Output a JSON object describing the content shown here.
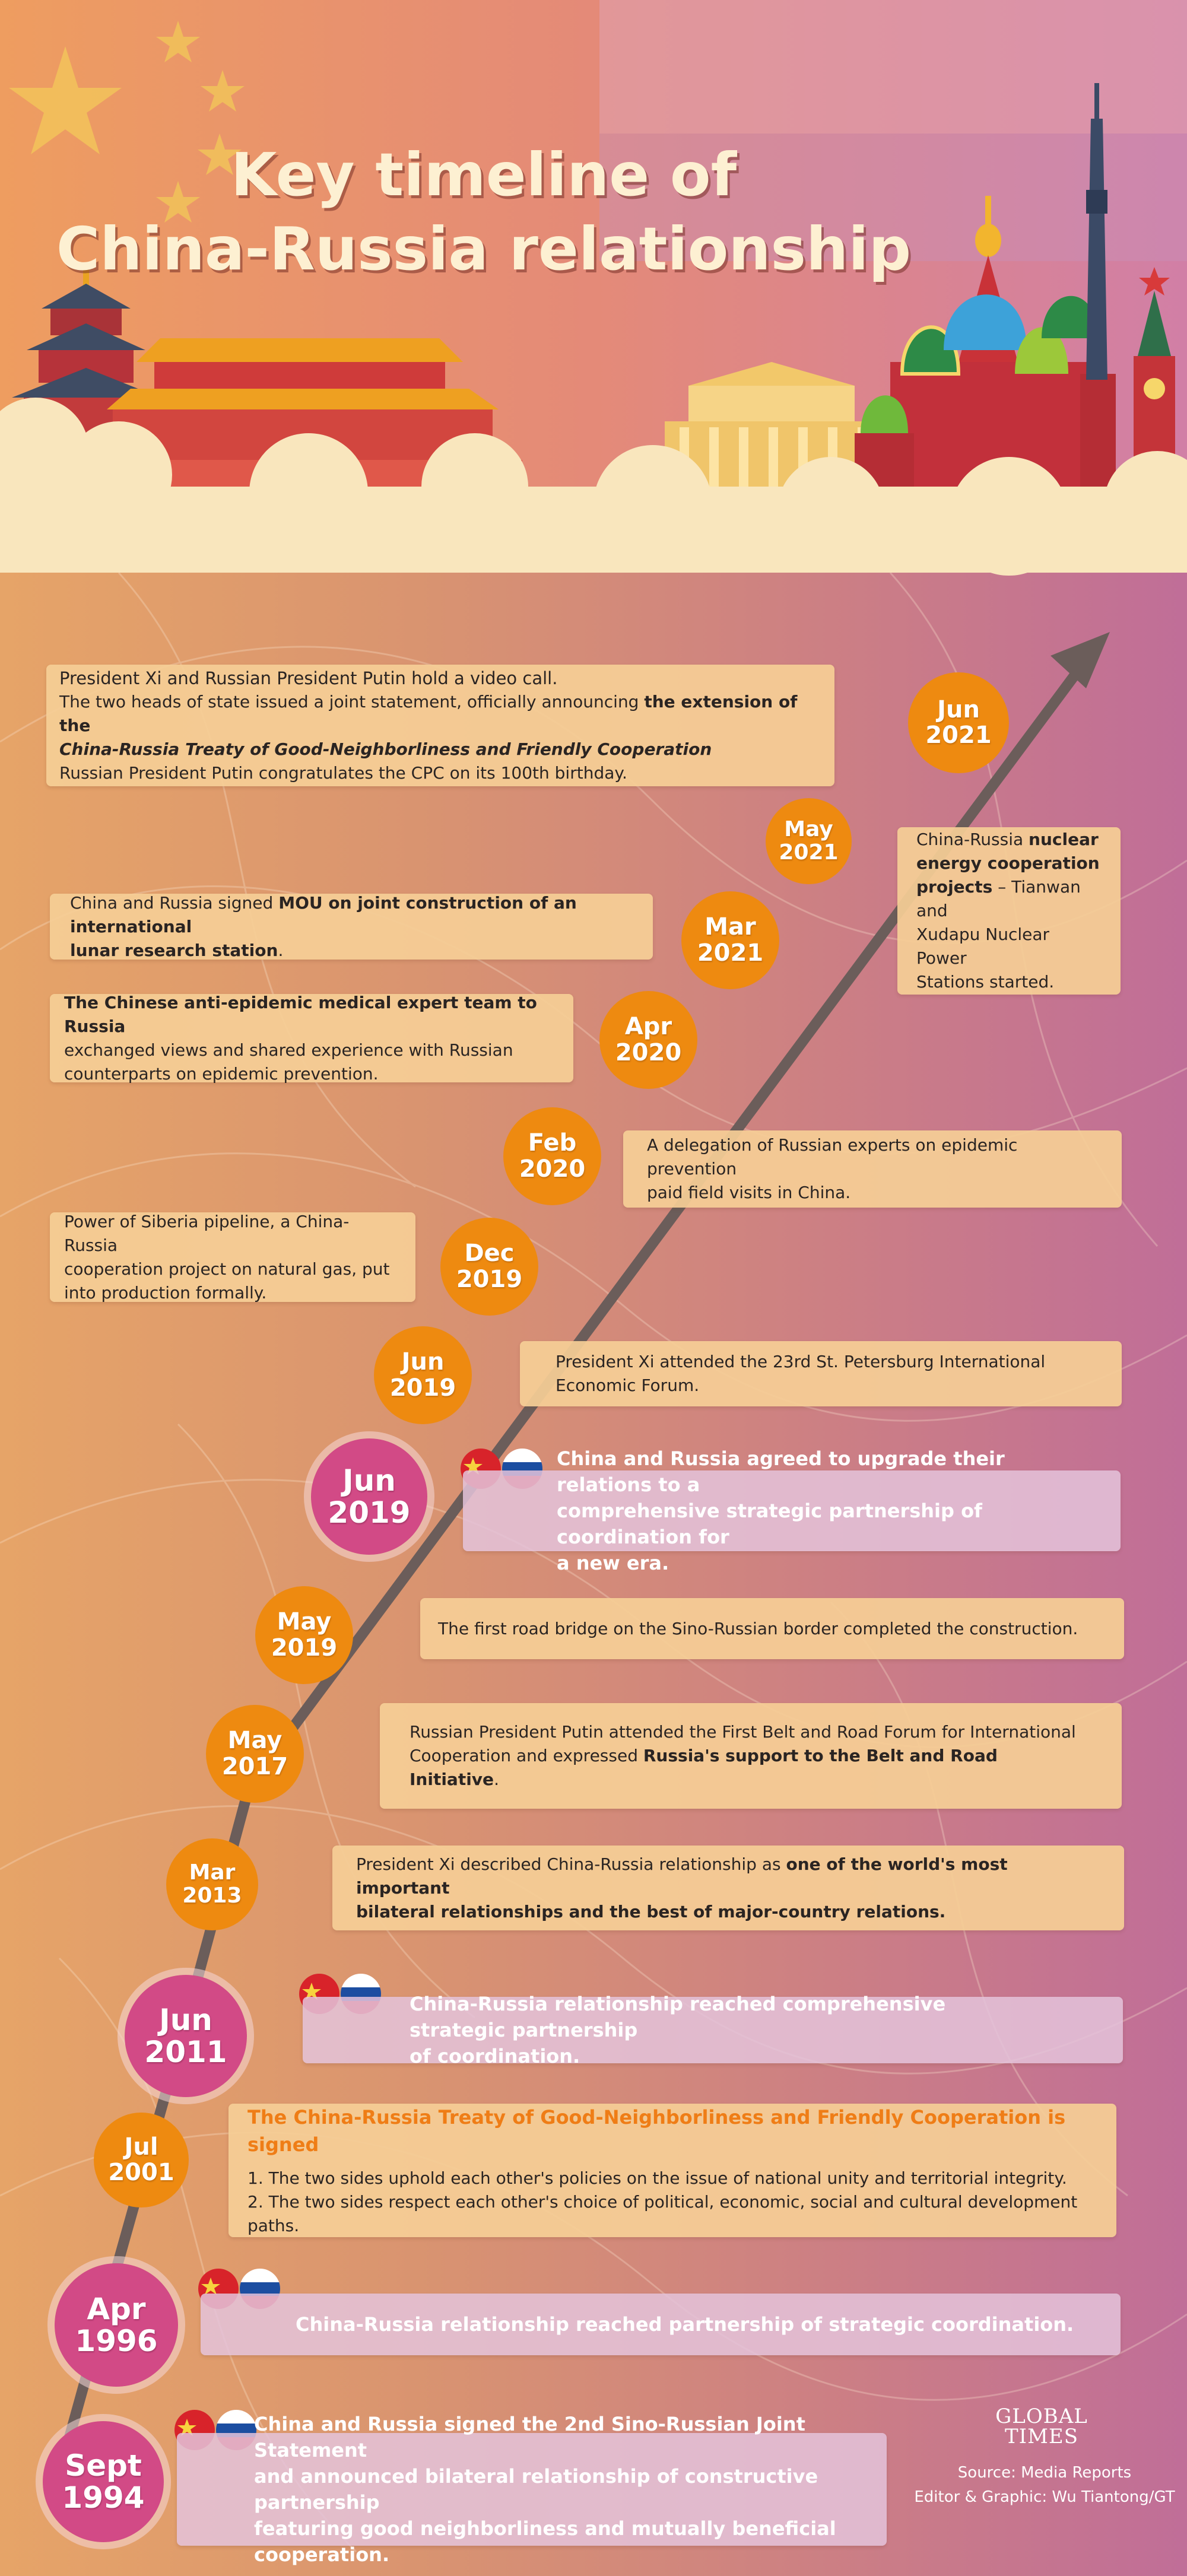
{
  "title": {
    "line1": "Key timeline of",
    "line2": "China-Russia relationship"
  },
  "colors": {
    "accent_orange": "#ee8a10",
    "accent_pink": "#d24a86",
    "box_fill": "#f5cd96",
    "heading_orange": "#ef7d16"
  },
  "events": [
    {
      "date": {
        "month": "Jun",
        "year": "2021"
      },
      "lines": [
        [
          {
            "t": "President Xi and Russian President Putin hold a video call."
          }
        ],
        [
          {
            "t": "The two heads of state issued a joint statement, officially announcing "
          },
          {
            "t": "the extension of the",
            "b": true
          }
        ],
        [
          {
            "t": "China-Russia Treaty of Good-Neighborliness and Friendly Cooperation",
            "b": true,
            "i": true
          }
        ],
        [
          {
            "t": "Russian President Putin congratulates the CPC on its 100th birthday."
          }
        ]
      ]
    },
    {
      "date": {
        "month": "May",
        "year": "2021"
      },
      "lines": [
        [
          {
            "t": "China-Russia "
          },
          {
            "t": "nuclear",
            "b": true
          }
        ],
        [
          {
            "t": "energy cooperation",
            "b": true
          }
        ],
        [
          {
            "t": "projects",
            "b": true
          },
          {
            "t": " – Tianwan and"
          }
        ],
        [
          {
            "t": "Xudapu Nuclear Power"
          }
        ],
        [
          {
            "t": "Stations started."
          }
        ]
      ]
    },
    {
      "date": {
        "month": "Mar",
        "year": "2021"
      },
      "lines": [
        [
          {
            "t": "China and Russia signed "
          },
          {
            "t": "MOU on joint construction of an international",
            "b": true
          }
        ],
        [
          {
            "t": "lunar research station",
            "b": true
          },
          {
            "t": "."
          }
        ]
      ]
    },
    {
      "date": {
        "month": "Apr",
        "year": "2020"
      },
      "lines": [
        [
          {
            "t": "The Chinese anti-epidemic medical expert team to Russia",
            "b": true
          }
        ],
        [
          {
            "t": "exchanged views and shared experience with Russian"
          }
        ],
        [
          {
            "t": "counterparts on epidemic prevention."
          }
        ]
      ]
    },
    {
      "date": {
        "month": "Feb",
        "year": "2020"
      },
      "lines": [
        [
          {
            "t": "A delegation of Russian experts on epidemic prevention"
          }
        ],
        [
          {
            "t": "paid field visits in China."
          }
        ]
      ]
    },
    {
      "date": {
        "month": "Dec",
        "year": "2019"
      },
      "lines": [
        [
          {
            "t": "Power of Siberia pipeline, a China-Russia"
          }
        ],
        [
          {
            "t": "cooperation project on natural gas, put"
          }
        ],
        [
          {
            "t": "into production formally."
          }
        ]
      ]
    },
    {
      "date": {
        "month": "Jun",
        "year": "2019"
      },
      "lines": [
        [
          {
            "t": "President Xi attended the 23rd St. Petersburg International"
          }
        ],
        [
          {
            "t": "Economic Forum."
          }
        ]
      ]
    },
    {
      "date": {
        "month": "Jun",
        "year": "2019"
      },
      "major": true,
      "lines": [
        [
          {
            "t": "China and Russia agreed to upgrade their relations to a"
          }
        ],
        [
          {
            "t": "comprehensive strategic partnership of coordination for"
          }
        ],
        [
          {
            "t": "a new era."
          }
        ]
      ]
    },
    {
      "date": {
        "month": "May",
        "year": "2019"
      },
      "lines": [
        [
          {
            "t": "The first road bridge on the Sino-Russian border completed the construction."
          }
        ]
      ]
    },
    {
      "date": {
        "month": "May",
        "year": "2017"
      },
      "lines": [
        [
          {
            "t": "Russian President Putin attended the First Belt and Road Forum for International"
          }
        ],
        [
          {
            "t": "Cooperation and expressed "
          },
          {
            "t": "Russia's support to the Belt and Road Initiative",
            "b": true
          },
          {
            "t": "."
          }
        ]
      ]
    },
    {
      "date": {
        "month": "Mar",
        "year": "2013"
      },
      "lines": [
        [
          {
            "t": "President Xi described China-Russia relationship as "
          },
          {
            "t": "one of the world's most important",
            "b": true
          }
        ],
        [
          {
            "t": "bilateral relationships and the best of major-country relations.",
            "b": true
          }
        ]
      ]
    },
    {
      "date": {
        "month": "Jun",
        "year": "2011"
      },
      "major": true,
      "lines": [
        [
          {
            "t": "China-Russia relationship reached comprehensive strategic partnership"
          }
        ],
        [
          {
            "t": "of coordination."
          }
        ]
      ]
    },
    {
      "date": {
        "month": "Jul",
        "year": "2001"
      },
      "heading": "The China-Russia Treaty of Good-Neighborliness and Friendly Cooperation is signed",
      "lines": [
        [
          {
            "t": "1. The two sides uphold each other's policies on the issue of national unity and territorial integrity."
          }
        ],
        [
          {
            "t": "2. The two sides respect each other's choice of political, economic, social and cultural development paths."
          }
        ]
      ]
    },
    {
      "date": {
        "month": "Apr",
        "year": "1996"
      },
      "major": true,
      "lines": [
        [
          {
            "t": "China-Russia relationship reached partnership of strategic coordination."
          }
        ]
      ]
    },
    {
      "date": {
        "month": "Sept",
        "year": "1994"
      },
      "major": true,
      "lines": [
        [
          {
            "t": "China and Russia signed the 2nd Sino-Russian Joint Statement"
          }
        ],
        [
          {
            "t": "and announced bilateral relationship of constructive partnership"
          }
        ],
        [
          {
            "t": "featuring good neighborliness and mutually beneficial cooperation."
          }
        ]
      ]
    }
  ],
  "footer": {
    "logo_line1": "GLOBAL",
    "logo_line2": "TIMES",
    "source": "Source: Media Reports",
    "credit": "Editor & Graphic: Wu Tiantong/GT"
  }
}
